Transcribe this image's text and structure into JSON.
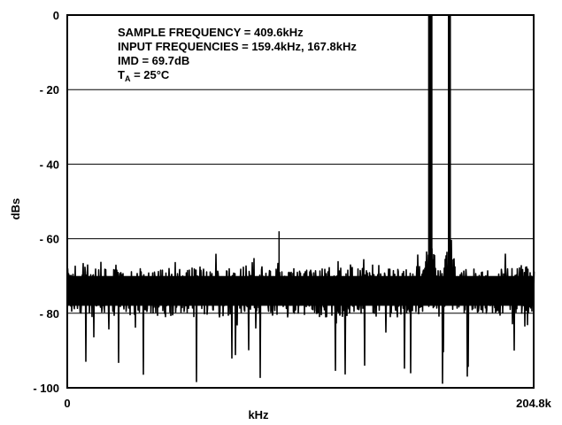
{
  "chart_data": {
    "type": "line",
    "title": "",
    "xlabel": "kHz",
    "ylabel": "dBs",
    "xlim": [
      0,
      204.8
    ],
    "ylim": [
      -100,
      0
    ],
    "x_tick_labels": [
      "0",
      "204.8k"
    ],
    "y_ticks": [
      0,
      -20,
      -40,
      -60,
      -80,
      -100
    ],
    "y_tick_labels": [
      "0",
      "- 20",
      "- 40",
      "- 60",
      "- 80",
      "- 100"
    ],
    "grid": true,
    "annotations": {
      "sample_frequency": "SAMPLE FREQUENCY  =  409.6kHz",
      "input_frequencies": "INPUT FREQUENCIES = 159.4kHz, 167.8kHz",
      "imd": "IMD = 69.7dB",
      "temp_main": "T",
      "temp_sub": "A",
      "temp_rest": " = 25°C"
    },
    "series": [
      {
        "noise_floor_db": -74,
        "noise_min_db": -99,
        "noise_max_db": -64,
        "tones": [
          {
            "x": 159.4,
            "y": 0
          },
          {
            "x": 167.8,
            "y": 0
          }
        ],
        "spurs": [
          {
            "x": 93.0,
            "y": -58
          }
        ]
      }
    ]
  }
}
